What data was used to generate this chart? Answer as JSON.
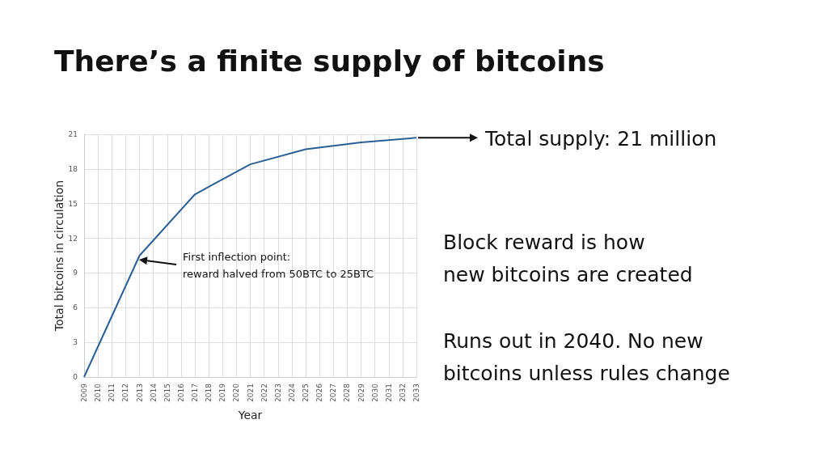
{
  "chart_data": {
    "type": "line",
    "title": "There’s a finite supply of bitcoins",
    "xlabel": "Year",
    "ylabel": "Total bitcoins in circulation",
    "x": [
      2009,
      2013,
      2017,
      2021,
      2025,
      2029,
      2033
    ],
    "series": [
      {
        "color": "#2b5f94",
        "values": [
          0,
          10.5,
          15.8,
          18.4,
          19.7,
          20.3,
          20.7
        ]
      }
    ],
    "xlim": [
      2009,
      2033
    ],
    "xticks": [
      2009,
      2010,
      2011,
      2012,
      2013,
      2014,
      2015,
      2016,
      2017,
      2018,
      2019,
      2020,
      2021,
      2022,
      2023,
      2024,
      2025,
      2026,
      2027,
      2028,
      2029,
      2030,
      2031,
      2032,
      2033
    ],
    "ylim": [
      0,
      21
    ],
    "yticks": [
      0,
      3,
      6,
      9,
      12,
      15,
      18,
      21
    ],
    "grid": true,
    "marker": "none",
    "line_style": "solid",
    "annotations": [
      "First inflection point:\nreward halved from 50BTC to 25BTC",
      {
        "text": "Total supply: 21 million",
        "x": 2033,
        "y": 20.7
      },
      "Block reward is how\nnew bitcoins are created",
      "Runs out in 2040. No new\nbitcoins unless rules change"
    ]
  }
}
